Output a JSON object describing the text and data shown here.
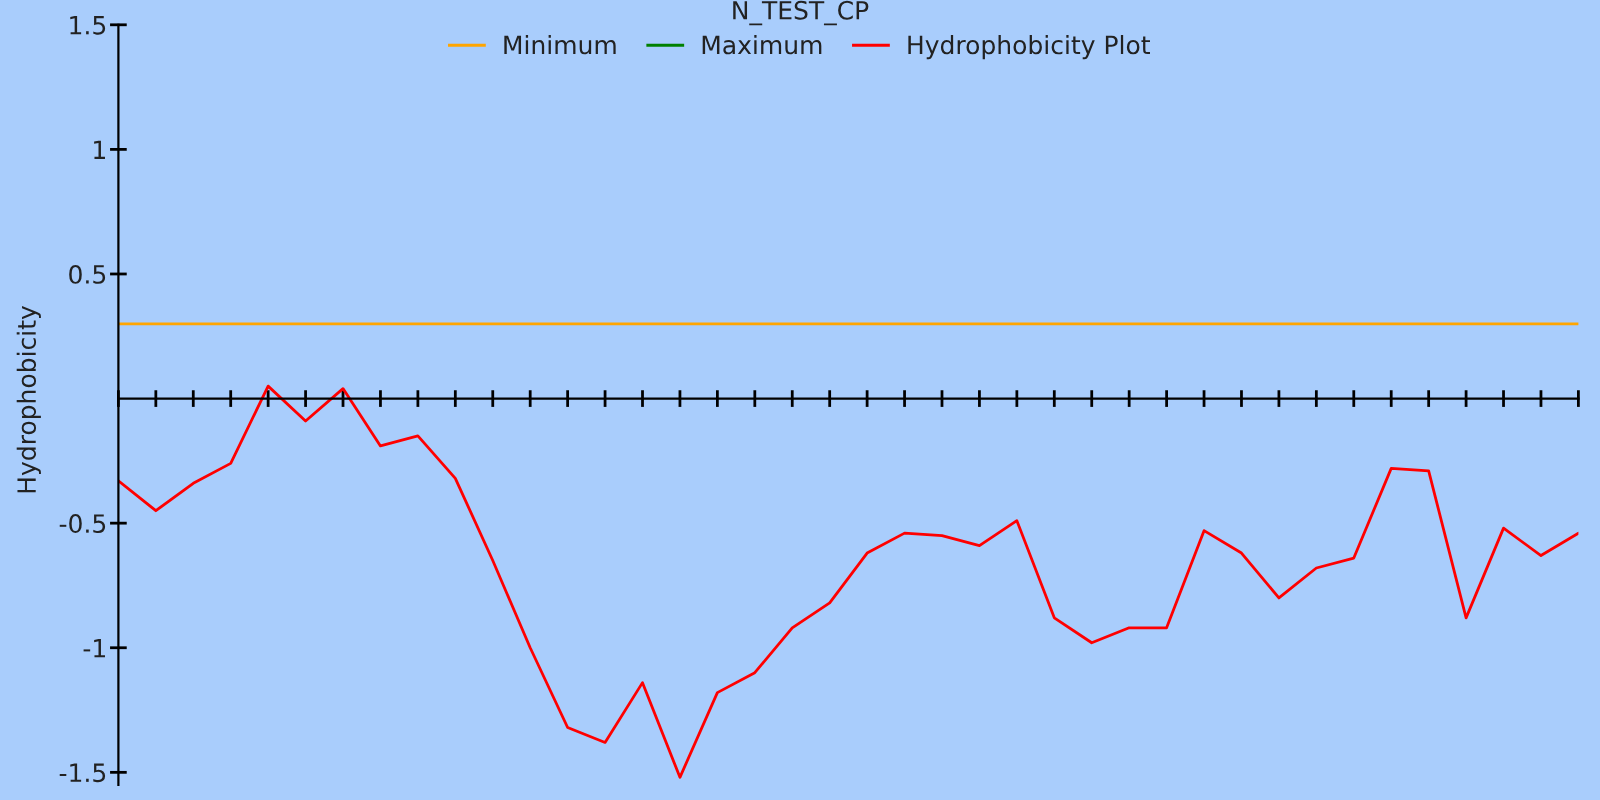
{
  "chart_data": {
    "type": "line",
    "title": "N_TEST_CP",
    "ylabel": "Hydrophobicity",
    "categories": [
      null,
      null,
      null,
      null,
      null,
      null,
      null,
      null,
      null,
      null,
      null,
      null,
      null,
      null,
      null,
      null,
      null,
      null,
      null,
      null,
      null,
      null,
      null,
      null,
      null,
      null,
      null,
      null,
      null,
      null,
      null,
      null,
      null,
      null,
      null,
      null,
      null,
      null,
      null,
      null
    ],
    "series": [
      {
        "name": "Minimum",
        "color": "#ffa500",
        "values": [
          0.3,
          0.3,
          0.3,
          0.3,
          0.3,
          0.3,
          0.3,
          0.3,
          0.3,
          0.3,
          0.3,
          0.3,
          0.3,
          0.3,
          0.3,
          0.3,
          0.3,
          0.3,
          0.3,
          0.3,
          0.3,
          0.3,
          0.3,
          0.3,
          0.3,
          0.3,
          0.3,
          0.3,
          0.3,
          0.3,
          0.3,
          0.3,
          0.3,
          0.3,
          0.3,
          0.3,
          0.3,
          0.3,
          0.3,
          0.3
        ]
      },
      {
        "name": "Maximum",
        "color": "#008000",
        "values": [
          null,
          null,
          null,
          null,
          null,
          null,
          null,
          null,
          null,
          null,
          null,
          null,
          null,
          null,
          null,
          null,
          null,
          null,
          null,
          null,
          null,
          null,
          null,
          null,
          null,
          null,
          null,
          null,
          null,
          null,
          null,
          null,
          null,
          null,
          null,
          null,
          null,
          null,
          null,
          null
        ]
      },
      {
        "name": "Hydrophobicity Plot",
        "color": "#ff0000",
        "values": [
          -0.33,
          -0.45,
          -0.34,
          -0.26,
          0.05,
          -0.09,
          0.04,
          -0.19,
          -0.15,
          -0.32,
          -0.65,
          -1.0,
          -1.32,
          -1.38,
          -1.14,
          -1.52,
          -1.18,
          -1.1,
          -0.92,
          -0.82,
          -0.62,
          -0.54,
          -0.55,
          -0.59,
          -0.49,
          -0.88,
          -0.98,
          -0.92,
          -0.92,
          -0.53,
          -0.62,
          -0.8,
          -0.68,
          -0.64,
          -0.28,
          -0.29,
          -0.88,
          -0.52,
          -0.63,
          -0.54
        ]
      }
    ],
    "ylim": [
      -1.55,
      1.5
    ],
    "yticks": [
      -1.5,
      -1,
      -0.5,
      0.5,
      1,
      1.5
    ],
    "legend": "top",
    "marker": "none",
    "line_style": "solid"
  }
}
